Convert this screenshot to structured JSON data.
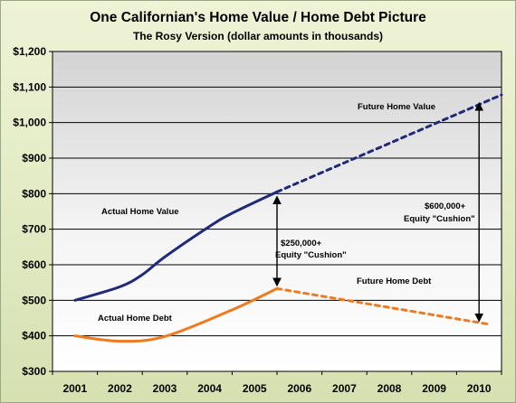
{
  "chart_data": {
    "type": "line",
    "title": "One Californian's Home Value / Home Debt Picture",
    "subtitle": "The Rosy Version (dollar amounts in thousands)",
    "xlabel": "",
    "ylabel": "",
    "x_categories": [
      "2001",
      "2002",
      "2003",
      "2004",
      "2005",
      "2006",
      "2007",
      "2008",
      "2009",
      "2010"
    ],
    "y_ticks": [
      "$300",
      "$400",
      "$500",
      "$600",
      "$700",
      "$800",
      "$900",
      "$1,000",
      "$1,100",
      "$1,200"
    ],
    "ylim": [
      300,
      1200
    ],
    "grid": true,
    "series": [
      {
        "key": "actual-home-value",
        "color": "#1f2a7a",
        "style": "solid",
        "points": [
          [
            2001,
            500
          ],
          [
            2002,
            538
          ],
          [
            2002.5,
            572
          ],
          [
            2003,
            622
          ],
          [
            2004,
            708
          ],
          [
            2004.5,
            745
          ],
          [
            2005.5,
            805
          ]
        ]
      },
      {
        "key": "future-home-value",
        "color": "#1f2a7a",
        "style": "dashed",
        "points": [
          [
            2005.5,
            805
          ],
          [
            2010.5,
            1078
          ]
        ]
      },
      {
        "key": "actual-home-debt",
        "color": "#f07a1e",
        "style": "solid",
        "points": [
          [
            2001,
            400
          ],
          [
            2002,
            385
          ],
          [
            2003,
            398
          ],
          [
            2004.5,
            473
          ],
          [
            2005.5,
            533
          ]
        ]
      },
      {
        "key": "future-home-debt",
        "color": "#f07a1e",
        "style": "dashed",
        "points": [
          [
            2005.5,
            533
          ],
          [
            2010.2,
            433
          ]
        ]
      }
    ],
    "annotations": {
      "actual_value": "Actual Home Value",
      "future_value": "Future Home Value",
      "actual_debt": "Actual Home Debt",
      "future_debt": "Future Home Debt",
      "equity_2005_line1": "$250,000+",
      "equity_2005_line2": "Equity \"Cushion\"",
      "equity_2010_line1": "$600,000+",
      "equity_2010_line2": "Equity \"Cushion\""
    },
    "equity_arrows": [
      {
        "key": "equity-2005",
        "x": 2005.5,
        "y_top": 800,
        "y_bottom": 533
      },
      {
        "key": "equity-2010",
        "x": 2010.0,
        "y_top": 1063,
        "y_bottom": 433
      }
    ]
  }
}
